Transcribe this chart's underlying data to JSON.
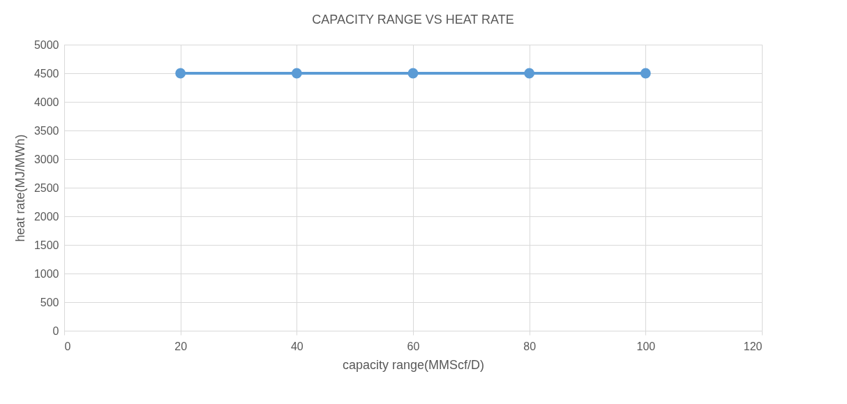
{
  "chart_data": {
    "type": "line",
    "title": "CAPACITY RANGE VS HEAT RATE",
    "xlabel": "capacity range(MMScf/D)",
    "ylabel": "heat rate(MJ/MWh)",
    "x": [
      20,
      40,
      60,
      80,
      100
    ],
    "series": [
      {
        "color": "#5b9bd5",
        "values": [
          4500,
          4500,
          4500,
          4500,
          4500
        ]
      }
    ],
    "xlim": [
      0,
      120
    ],
    "xticks": [
      0,
      20,
      40,
      60,
      80,
      100,
      120
    ],
    "ylim": [
      0,
      5000
    ],
    "yticks": [
      0,
      500,
      1000,
      1500,
      2000,
      2500,
      3000,
      3500,
      4000,
      4500,
      5000
    ],
    "grid": true,
    "marker": "circle",
    "line_style": "solid"
  }
}
